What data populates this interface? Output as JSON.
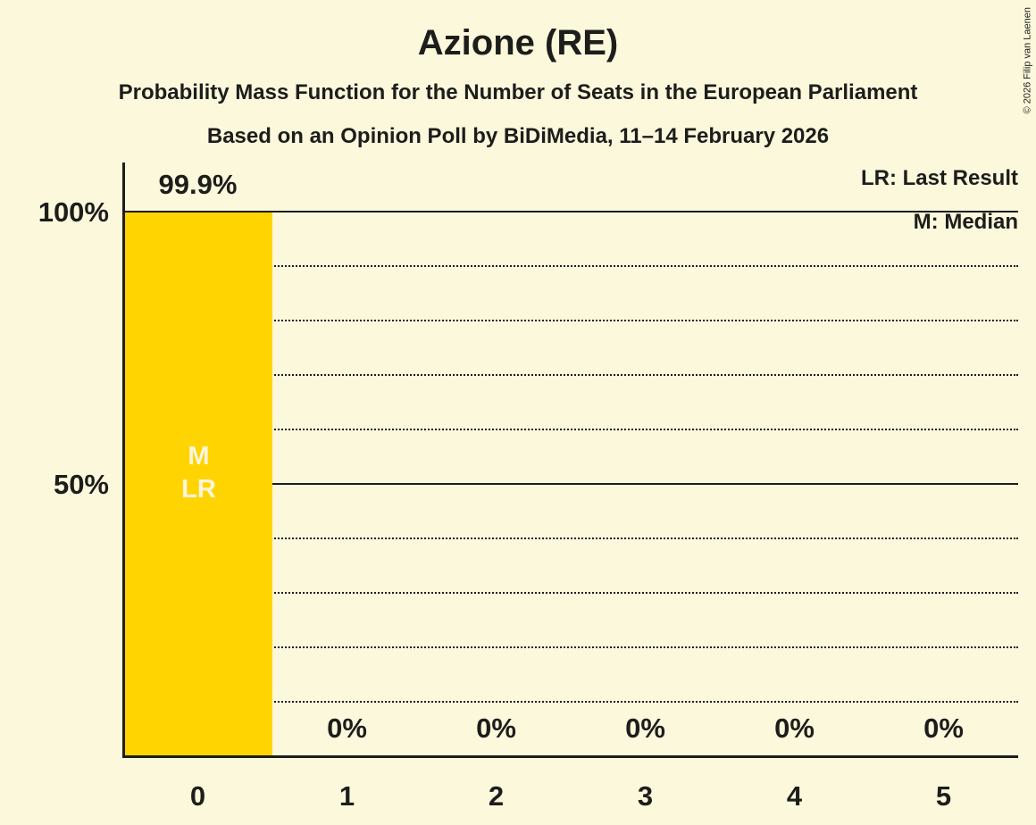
{
  "title": "Azione (RE)",
  "subtitle_line1": "Probability Mass Function for the Number of Seats in the European Parliament",
  "subtitle_line2": "Based on an Opinion Poll by BiDiMedia, 11–14 February 2026",
  "copyright": "© 2026 Filip van Laenen",
  "legend": {
    "last_result": "LR: Last Result",
    "median": "M: Median"
  },
  "y_axis": {
    "tick_100": "100%",
    "tick_50": "50%"
  },
  "bar_overlay": {
    "median_marker": "M",
    "last_result_marker": "LR"
  },
  "colors": {
    "background": "#FCF8DC",
    "bar": "#FFD400",
    "text": "#1D1D1B",
    "bar_marker_text": "#FAF5DC"
  },
  "chart_data": {
    "type": "bar",
    "title": "Azione (RE)",
    "categories": [
      "0",
      "1",
      "2",
      "3",
      "4",
      "5"
    ],
    "values": [
      99.9,
      0,
      0,
      0,
      0,
      0
    ],
    "value_labels": [
      "99.9%",
      "0%",
      "0%",
      "0%",
      "0%",
      "0%"
    ],
    "xlabel": "",
    "ylabel": "",
    "ylim": [
      0,
      100
    ],
    "y_tick_labels": [
      "100%",
      "50%"
    ],
    "y_gridlines_percent": [
      10,
      20,
      30,
      40,
      50,
      60,
      70,
      80,
      90,
      100
    ],
    "solid_gridlines_percent": [
      50,
      100
    ],
    "grid": true,
    "median_seats": 0,
    "last_result_seats": 0,
    "legend_position": "top-right"
  }
}
